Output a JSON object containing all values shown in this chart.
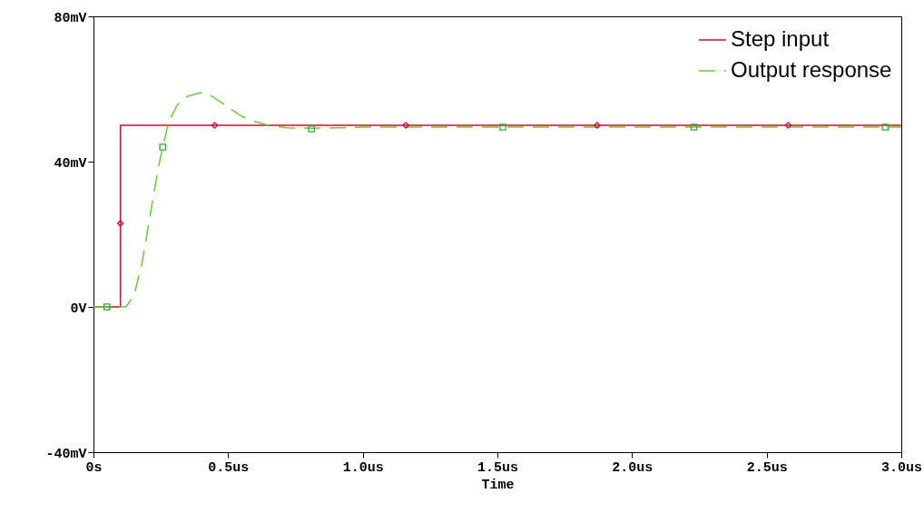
{
  "chart_data": {
    "type": "line",
    "xlabel": "Time",
    "xlim": [
      0,
      3
    ],
    "ylim": [
      -40,
      80
    ],
    "xticks": [
      {
        "value": 0,
        "label": "0s"
      },
      {
        "value": 0.5,
        "label": "0.5us"
      },
      {
        "value": 1,
        "label": "1.0us"
      },
      {
        "value": 1.5,
        "label": "1.5us"
      },
      {
        "value": 2,
        "label": "2.0us"
      },
      {
        "value": 2.5,
        "label": "2.5us"
      },
      {
        "value": 3,
        "label": "3.0us"
      }
    ],
    "yticks": [
      {
        "value": -40,
        "label": "-40mV"
      },
      {
        "value": 0,
        "label": "0V"
      },
      {
        "value": 40,
        "label": "40mV"
      },
      {
        "value": 80,
        "label": "80mV"
      }
    ],
    "legend": "top right",
    "series": [
      {
        "name": "Step input",
        "type": "line",
        "color": "#c8102e",
        "line_style": "solid",
        "x": [
          0,
          0.1,
          0.1,
          3
        ],
        "values": [
          0,
          0,
          50,
          50
        ]
      },
      {
        "name": "Output response",
        "type": "line",
        "color": "#66cc33",
        "line_style": "dashed",
        "x": [
          0,
          0.12,
          0.15,
          0.18,
          0.21,
          0.24,
          0.257,
          0.28,
          0.31,
          0.35,
          0.4,
          0.44,
          0.5,
          0.55,
          0.6,
          0.65,
          0.72,
          0.8,
          0.9,
          1.0,
          3.0
        ],
        "values": [
          0,
          0,
          3,
          12,
          25,
          38,
          44,
          51,
          55.5,
          58,
          59,
          58,
          55,
          52.5,
          51,
          50,
          49.3,
          49.2,
          49.3,
          49.5,
          49.5
        ]
      },
      {
        "type": "scatter",
        "color": "#c8102e",
        "marker": "diamond",
        "x": [
          0.1,
          0.45,
          1.16,
          1.87,
          2.58
        ],
        "values": [
          23,
          50,
          50,
          50,
          50
        ]
      },
      {
        "type": "scatter",
        "color": "#33aa33",
        "marker": "square",
        "x": [
          0.05,
          0.257,
          0.81,
          1.52,
          2.23,
          2.94
        ],
        "values": [
          0,
          44,
          49,
          49.5,
          49.5,
          49.5
        ]
      }
    ]
  }
}
